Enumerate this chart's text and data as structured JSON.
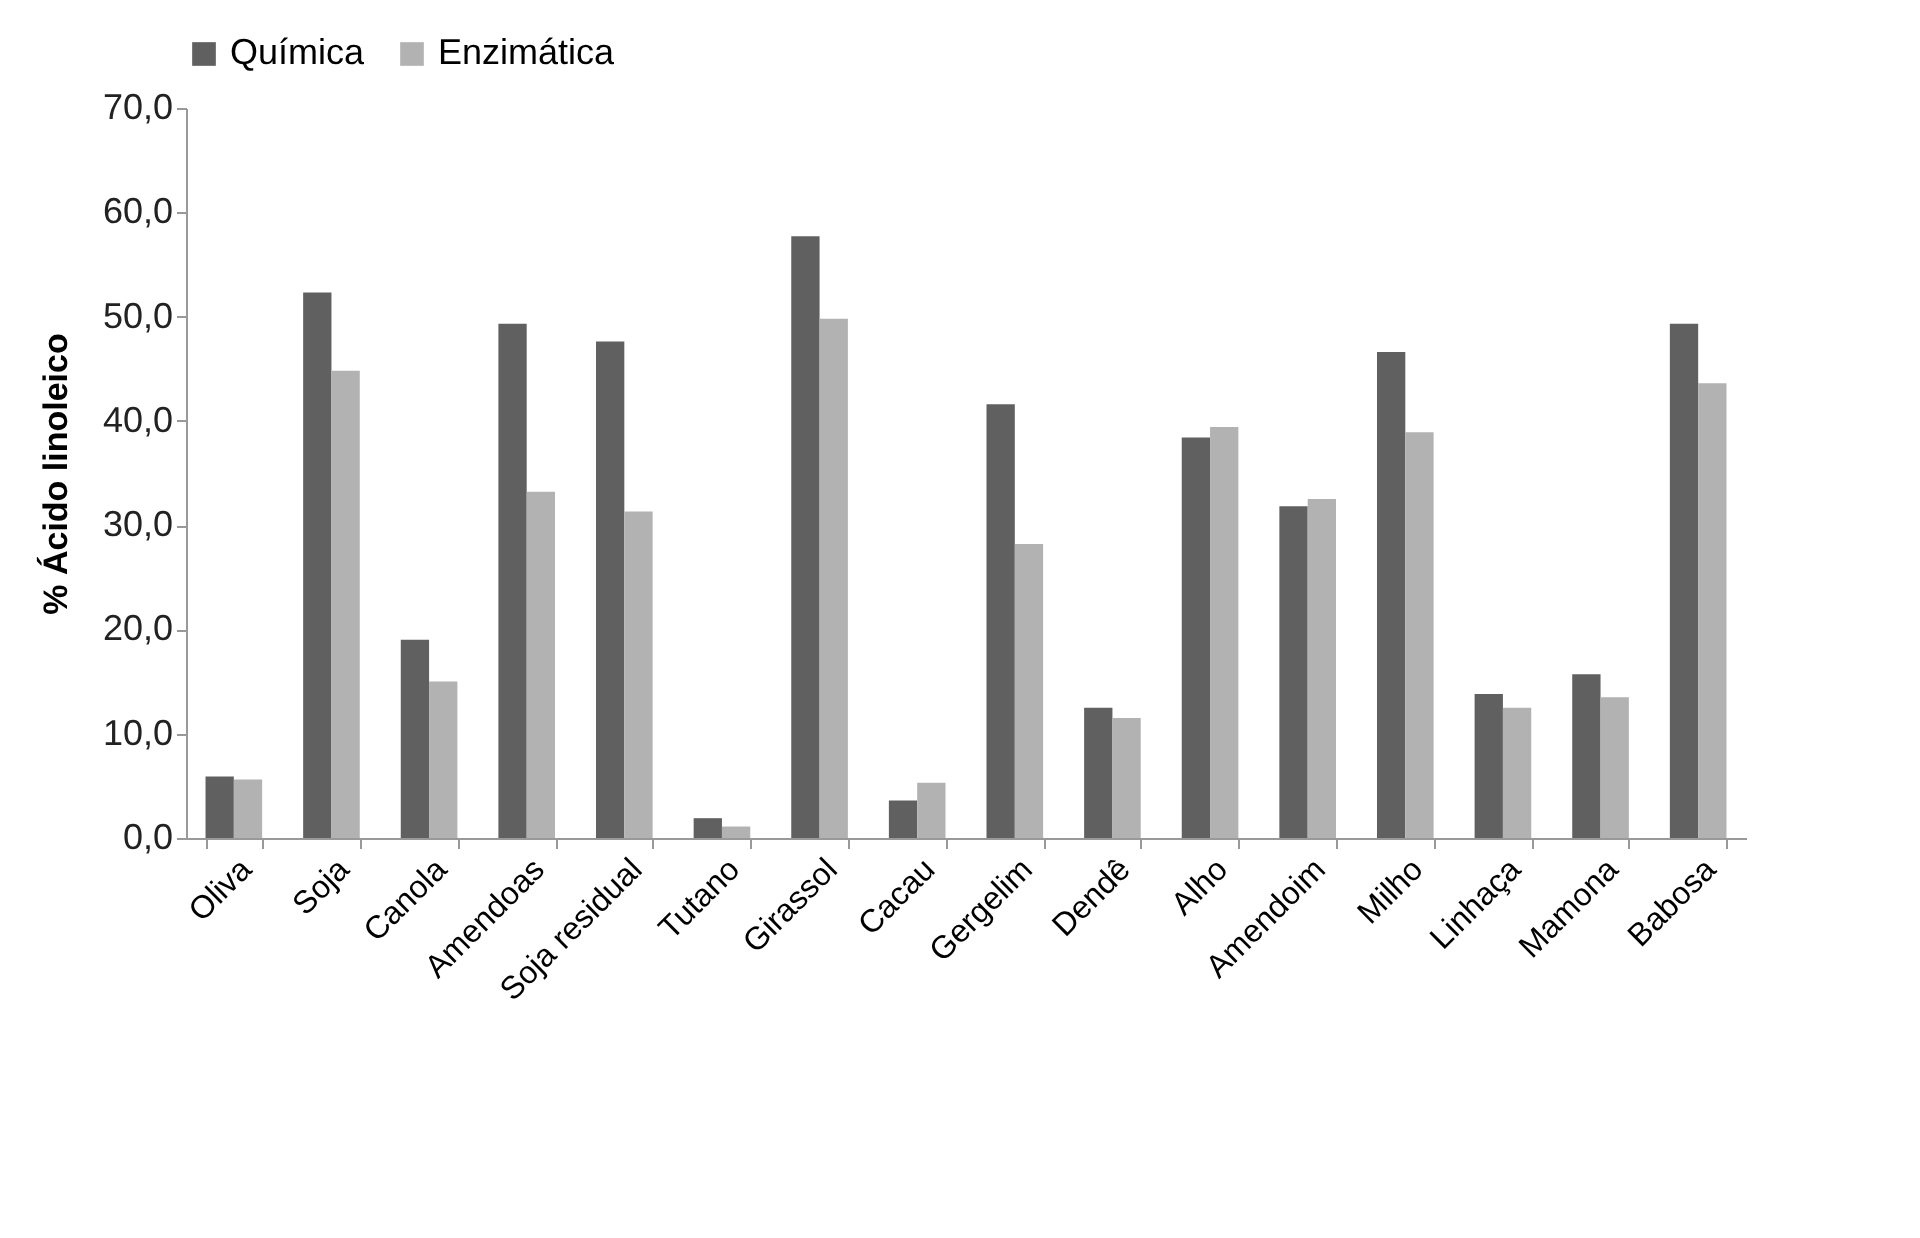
{
  "chart_data": {
    "type": "bar",
    "ylabel": "% Ácido linoleico",
    "categories": [
      "Oliva",
      "Soja",
      "Canola",
      "Amendoas",
      "Soja residual",
      "Tutano",
      "Girassol",
      "Cacau",
      "Gergelim",
      "Dendê",
      "Alho",
      "Amendoim",
      "Milho",
      "Linhaça",
      "Mamona",
      "Babosa"
    ],
    "series": [
      {
        "name": "Química",
        "color": "#606060",
        "values": [
          5.9,
          52.3,
          19.0,
          49.3,
          47.6,
          1.9,
          57.7,
          3.6,
          41.6,
          12.5,
          38.4,
          31.8,
          46.6,
          13.8,
          15.7,
          49.3
        ]
      },
      {
        "name": "Enzimática",
        "color": "#b2b2b2",
        "values": [
          5.6,
          44.8,
          15.0,
          33.2,
          31.3,
          1.1,
          49.8,
          5.3,
          28.2,
          11.5,
          39.4,
          32.5,
          38.9,
          12.5,
          13.5,
          43.6
        ]
      }
    ],
    "ylim": [
      0,
      70
    ],
    "yticks": [
      {
        "value": 0,
        "label": "0,0"
      },
      {
        "value": 10,
        "label": "10,0"
      },
      {
        "value": 20,
        "label": "20,0"
      },
      {
        "value": 30,
        "label": "30,0"
      },
      {
        "value": 40,
        "label": "40,0"
      },
      {
        "value": 50,
        "label": "50,0"
      },
      {
        "value": 60,
        "label": "60,0"
      },
      {
        "value": 70,
        "label": "70,0"
      }
    ],
    "grid": false,
    "legend": "top"
  }
}
